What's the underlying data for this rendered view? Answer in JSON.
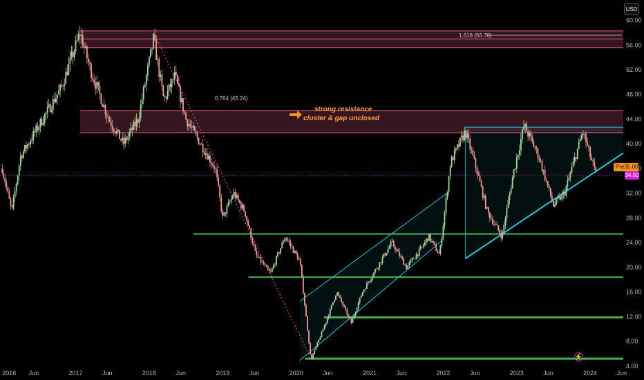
{
  "currency": "USD",
  "annotation": {
    "line1": "strong resistance",
    "line2": "cluster &  gap unclosed",
    "arrow_icon": "right-arrow-icon"
  },
  "fib_labels": {
    "upper": "1.618 (56.78)",
    "lower": "0.764 (45.24)"
  },
  "pre_market": {
    "label": "Pre",
    "value": "35.00"
  },
  "last_price": "34.92",
  "colors": {
    "up_candle": "#a5d6a7",
    "down_candle": "#ef9a9a",
    "resistance": "#f06292",
    "support": "#4caf50",
    "channel": "#26c6da",
    "pre_badge": "#f7931a",
    "price_badge": "#d01fd4"
  },
  "chart_data": {
    "type": "candlestick",
    "x_range": [
      2015.97,
      2024.45
    ],
    "ylim": [
      2.3,
      62.3
    ],
    "y_ticks": [
      4,
      8,
      12,
      16,
      20,
      24,
      28,
      32,
      36,
      40,
      44,
      48,
      52,
      56,
      60
    ],
    "y_tick_labels": [
      "4.00",
      "8.00",
      "12.00",
      "16.00",
      "20.00",
      "24.00",
      "28.00",
      "32.00",
      "36.00",
      "40.00",
      "44.00",
      "48.00",
      "52.00",
      "56.00",
      "60.00"
    ],
    "x_ticks": [
      {
        "t": 2016.0,
        "label": "2016"
      },
      {
        "t": 2016.43,
        "label": "Jun"
      },
      {
        "t": 2017.0,
        "label": "2017"
      },
      {
        "t": 2017.43,
        "label": "Jun"
      },
      {
        "t": 2018.0,
        "label": "2018"
      },
      {
        "t": 2018.43,
        "label": "Jun"
      },
      {
        "t": 2019.0,
        "label": "2019"
      },
      {
        "t": 2019.43,
        "label": "Jun"
      },
      {
        "t": 2020.0,
        "label": "2020"
      },
      {
        "t": 2020.43,
        "label": "Jun"
      },
      {
        "t": 2021.0,
        "label": "2021"
      },
      {
        "t": 2021.43,
        "label": "Jun"
      },
      {
        "t": 2022.0,
        "label": "2022"
      },
      {
        "t": 2022.43,
        "label": "Jun"
      },
      {
        "t": 2023.0,
        "label": "2023"
      },
      {
        "t": 2023.43,
        "label": "Jun"
      },
      {
        "t": 2024.0,
        "label": "2024"
      },
      {
        "t": 2024.43,
        "label": "Jun"
      }
    ],
    "price_path": [
      [
        2016.0,
        36
      ],
      [
        2016.13,
        29
      ],
      [
        2016.25,
        38
      ],
      [
        2016.5,
        43
      ],
      [
        2016.8,
        49
      ],
      [
        2017.06,
        58
      ],
      [
        2017.2,
        52
      ],
      [
        2017.45,
        44
      ],
      [
        2017.65,
        40
      ],
      [
        2017.85,
        44
      ],
      [
        2018.06,
        57
      ],
      [
        2018.2,
        47
      ],
      [
        2018.35,
        51
      ],
      [
        2018.5,
        44
      ],
      [
        2018.7,
        40
      ],
      [
        2018.9,
        36
      ],
      [
        2019.0,
        28
      ],
      [
        2019.15,
        32
      ],
      [
        2019.3,
        29
      ],
      [
        2019.45,
        22
      ],
      [
        2019.65,
        19
      ],
      [
        2019.85,
        25
      ],
      [
        2020.05,
        21
      ],
      [
        2020.2,
        5
      ],
      [
        2020.4,
        11
      ],
      [
        2020.55,
        16
      ],
      [
        2020.75,
        11
      ],
      [
        2020.9,
        16
      ],
      [
        2021.1,
        20
      ],
      [
        2021.3,
        24
      ],
      [
        2021.5,
        20
      ],
      [
        2021.7,
        23
      ],
      [
        2021.8,
        25
      ],
      [
        2021.95,
        22
      ],
      [
        2022.1,
        37
      ],
      [
        2022.3,
        42
      ],
      [
        2022.45,
        36
      ],
      [
        2022.6,
        29
      ],
      [
        2022.8,
        25
      ],
      [
        2022.95,
        35
      ],
      [
        2023.1,
        43
      ],
      [
        2023.3,
        38
      ],
      [
        2023.5,
        30
      ],
      [
        2023.65,
        32
      ],
      [
        2023.9,
        42
      ],
      [
        2024.0,
        38
      ],
      [
        2024.08,
        35
      ]
    ],
    "resistance_zones": [
      {
        "y1": 55.6,
        "y2": 58.3
      },
      {
        "y1": 41.8,
        "y2": 45.4
      }
    ],
    "resistance_lines": [
      58.3,
      57.0,
      55.6,
      45.4,
      41.8
    ],
    "support_lines": [
      25.4,
      18.4,
      11.9,
      5.2
    ],
    "rising_channel": {
      "lower": [
        [
          2020.05,
          4.9
        ],
        [
          2022.0,
          24.5
        ]
      ],
      "upper": [
        [
          2020.05,
          14.5
        ],
        [
          2022.05,
          32.0
        ]
      ]
    },
    "triangle": {
      "top_y": 42.7,
      "lower": [
        [
          2022.3,
          21.4
        ],
        [
          2024.45,
          38.5
        ]
      ],
      "left": [
        [
          2022.3,
          42.7
        ],
        [
          2022.3,
          21.4
        ]
      ]
    },
    "decline_line": [
      [
        2018.06,
        58.0
      ],
      [
        2020.2,
        5.2
      ]
    ],
    "last_price_y": 34.92
  }
}
